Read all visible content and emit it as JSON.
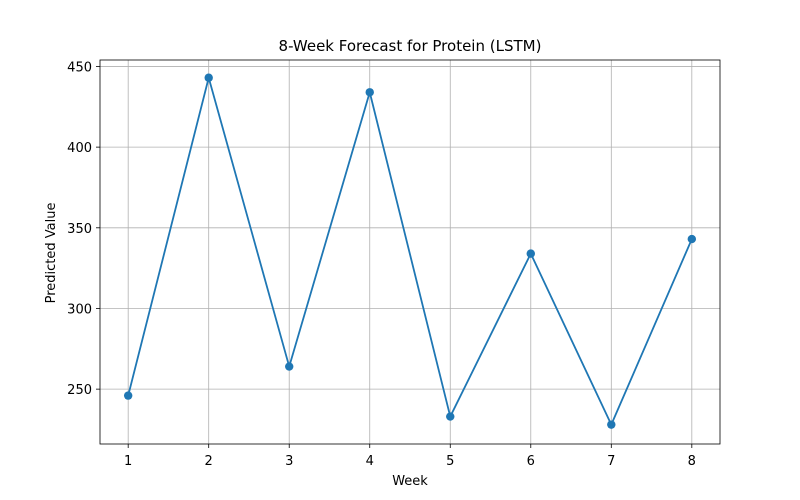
{
  "chart_data": {
    "type": "line",
    "title": "8-Week Forecast for Protein (LSTM)",
    "xlabel": "Week",
    "ylabel": "Predicted Value",
    "x": [
      1,
      2,
      3,
      4,
      5,
      6,
      7,
      8
    ],
    "series": [
      {
        "values": [
          246,
          443,
          264,
          434,
          233,
          334,
          228,
          343
        ],
        "color": "#1f77b4",
        "marker": "circle"
      }
    ],
    "xlim": [
      0.65,
      8.35
    ],
    "ylim": [
      216,
      454
    ],
    "xticks": [
      1,
      2,
      3,
      4,
      5,
      6,
      7,
      8
    ],
    "yticks": [
      250,
      300,
      350,
      400,
      450
    ],
    "grid": true,
    "grid_color": "#b0b0b0",
    "axis_color": "#000000"
  }
}
